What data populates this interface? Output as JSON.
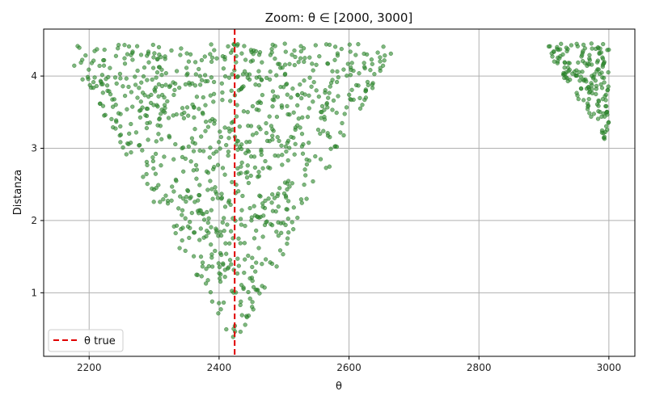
{
  "chart_data": {
    "type": "scatter",
    "title": "Zoom: θ ∈ [2000, 3000]",
    "xlabel": "θ",
    "ylabel": "Distanza",
    "xlim": [
      2130,
      3040
    ],
    "ylim": [
      0.12,
      4.65
    ],
    "xticks": [
      2200,
      2400,
      2600,
      2800,
      3000
    ],
    "yticks": [
      1,
      2,
      3,
      4
    ],
    "xtick_labels": [
      "2200",
      "2400",
      "2600",
      "2800",
      "3000"
    ],
    "ytick_labels": [
      "1",
      "2",
      "3",
      "4"
    ],
    "grid": true,
    "point_color": "#2e8b2e",
    "point_edge_color": "#1f6b1f",
    "reference_line": {
      "x": 2424,
      "color": "#e00000",
      "style": "dashed",
      "label": "θ true"
    },
    "legend": {
      "position": "bottom-left",
      "entries": [
        "θ true"
      ]
    },
    "regions": [
      {
        "description": "main V-shaped cloud",
        "x_min": 2160,
        "x_max": 2670,
        "apex_x": 2424,
        "apex_y": 0.33,
        "y_max": 4.45,
        "n_points": 900
      },
      {
        "description": "right triangular cloud",
        "x_min": 2900,
        "x_max": 3000,
        "top_y": 4.45,
        "bottom_y": 3.08,
        "n_points": 170
      }
    ]
  }
}
